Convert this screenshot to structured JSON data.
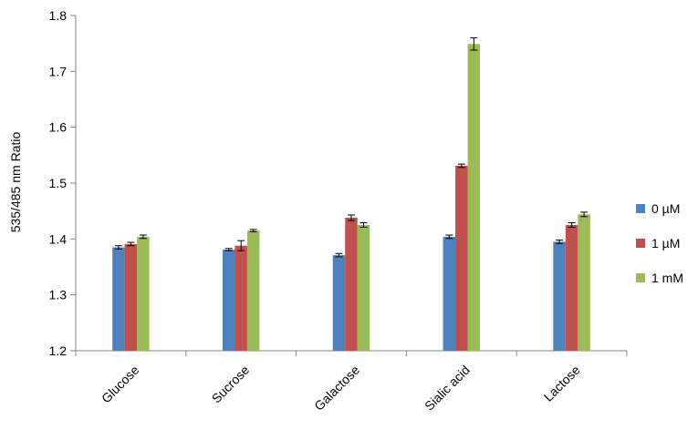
{
  "chart_data": {
    "type": "bar",
    "title": "",
    "xlabel": "",
    "ylabel": "535/485 nm Ratio",
    "categories": [
      "Glucose",
      "Sucrose",
      "Galactose",
      "Sialic acid",
      "Lactose"
    ],
    "series": [
      {
        "name": "0 µM",
        "color": "#4F81BD",
        "values": [
          1.385,
          1.381,
          1.371,
          1.404,
          1.395
        ],
        "errors": [
          0.003,
          0.002,
          0.003,
          0.003,
          0.003
        ]
      },
      {
        "name": "1 µM",
        "color": "#C0504D",
        "values": [
          1.391,
          1.388,
          1.438,
          1.531,
          1.425
        ],
        "errors": [
          0.003,
          0.009,
          0.005,
          0.003,
          0.004
        ]
      },
      {
        "name": "1 mM",
        "color": "#9BBB59",
        "values": [
          1.404,
          1.415,
          1.425,
          1.749,
          1.444
        ],
        "errors": [
          0.003,
          0.002,
          0.004,
          0.011,
          0.004
        ]
      }
    ],
    "ylim": [
      1.2,
      1.8
    ],
    "yticks": [
      "1.2",
      "1.3",
      "1.4",
      "1.5",
      "1.6",
      "1.7",
      "1.8"
    ],
    "grid": false,
    "legend_position": "right"
  }
}
